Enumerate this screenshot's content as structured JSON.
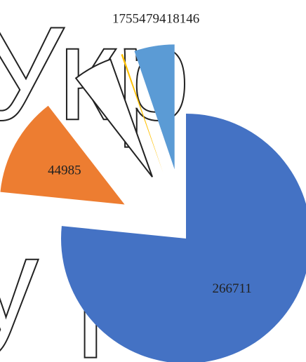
{
  "chart_data": {
    "type": "pie",
    "background_text": [
      "Укр",
      "у р"
    ],
    "categories": [
      null,
      null,
      null,
      null,
      null
    ],
    "values": [
      266711,
      44985,
      17554,
      794,
      18146
    ],
    "colors": [
      "#4472c4",
      "#ed7d31",
      "#ffffff",
      "#ffc000",
      "#5b9bd5"
    ],
    "exploded": true
  }
}
